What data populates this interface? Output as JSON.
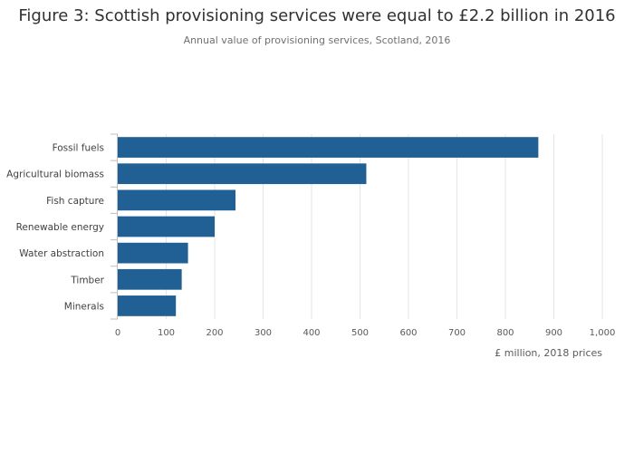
{
  "title": "Figure 3: Scottish provisioning services were equal to £2.2 billion in 2016",
  "subtitle": "Annual value of provisioning services, Scotland, 2016",
  "colors": {
    "bar": "#206095",
    "grid": "#e6e6e6",
    "axis": "#bfbfbf"
  },
  "chart_data": {
    "type": "bar",
    "orientation": "horizontal",
    "title": "Figure 3: Scottish provisioning services were equal to £2.2 billion in 2016",
    "subtitle": "Annual value of provisioning services, Scotland, 2016",
    "categories": [
      "Fossil fuels",
      "Agricultural biomass",
      "Fish capture",
      "Renewable energy",
      "Water abstraction",
      "Timber",
      "Minerals"
    ],
    "values": [
      868,
      513,
      243,
      200,
      145,
      132,
      120
    ],
    "xlabel": "£ million, 2018 prices",
    "ylabel": "",
    "xlim": [
      0,
      1000
    ],
    "ticks": [
      0,
      100,
      200,
      300,
      400,
      500,
      600,
      700,
      800,
      900,
      1000
    ],
    "tick_labels": [
      "0",
      "100",
      "200",
      "300",
      "400",
      "500",
      "600",
      "700",
      "800",
      "900",
      "1,000"
    ],
    "grid": true,
    "legend": false
  }
}
